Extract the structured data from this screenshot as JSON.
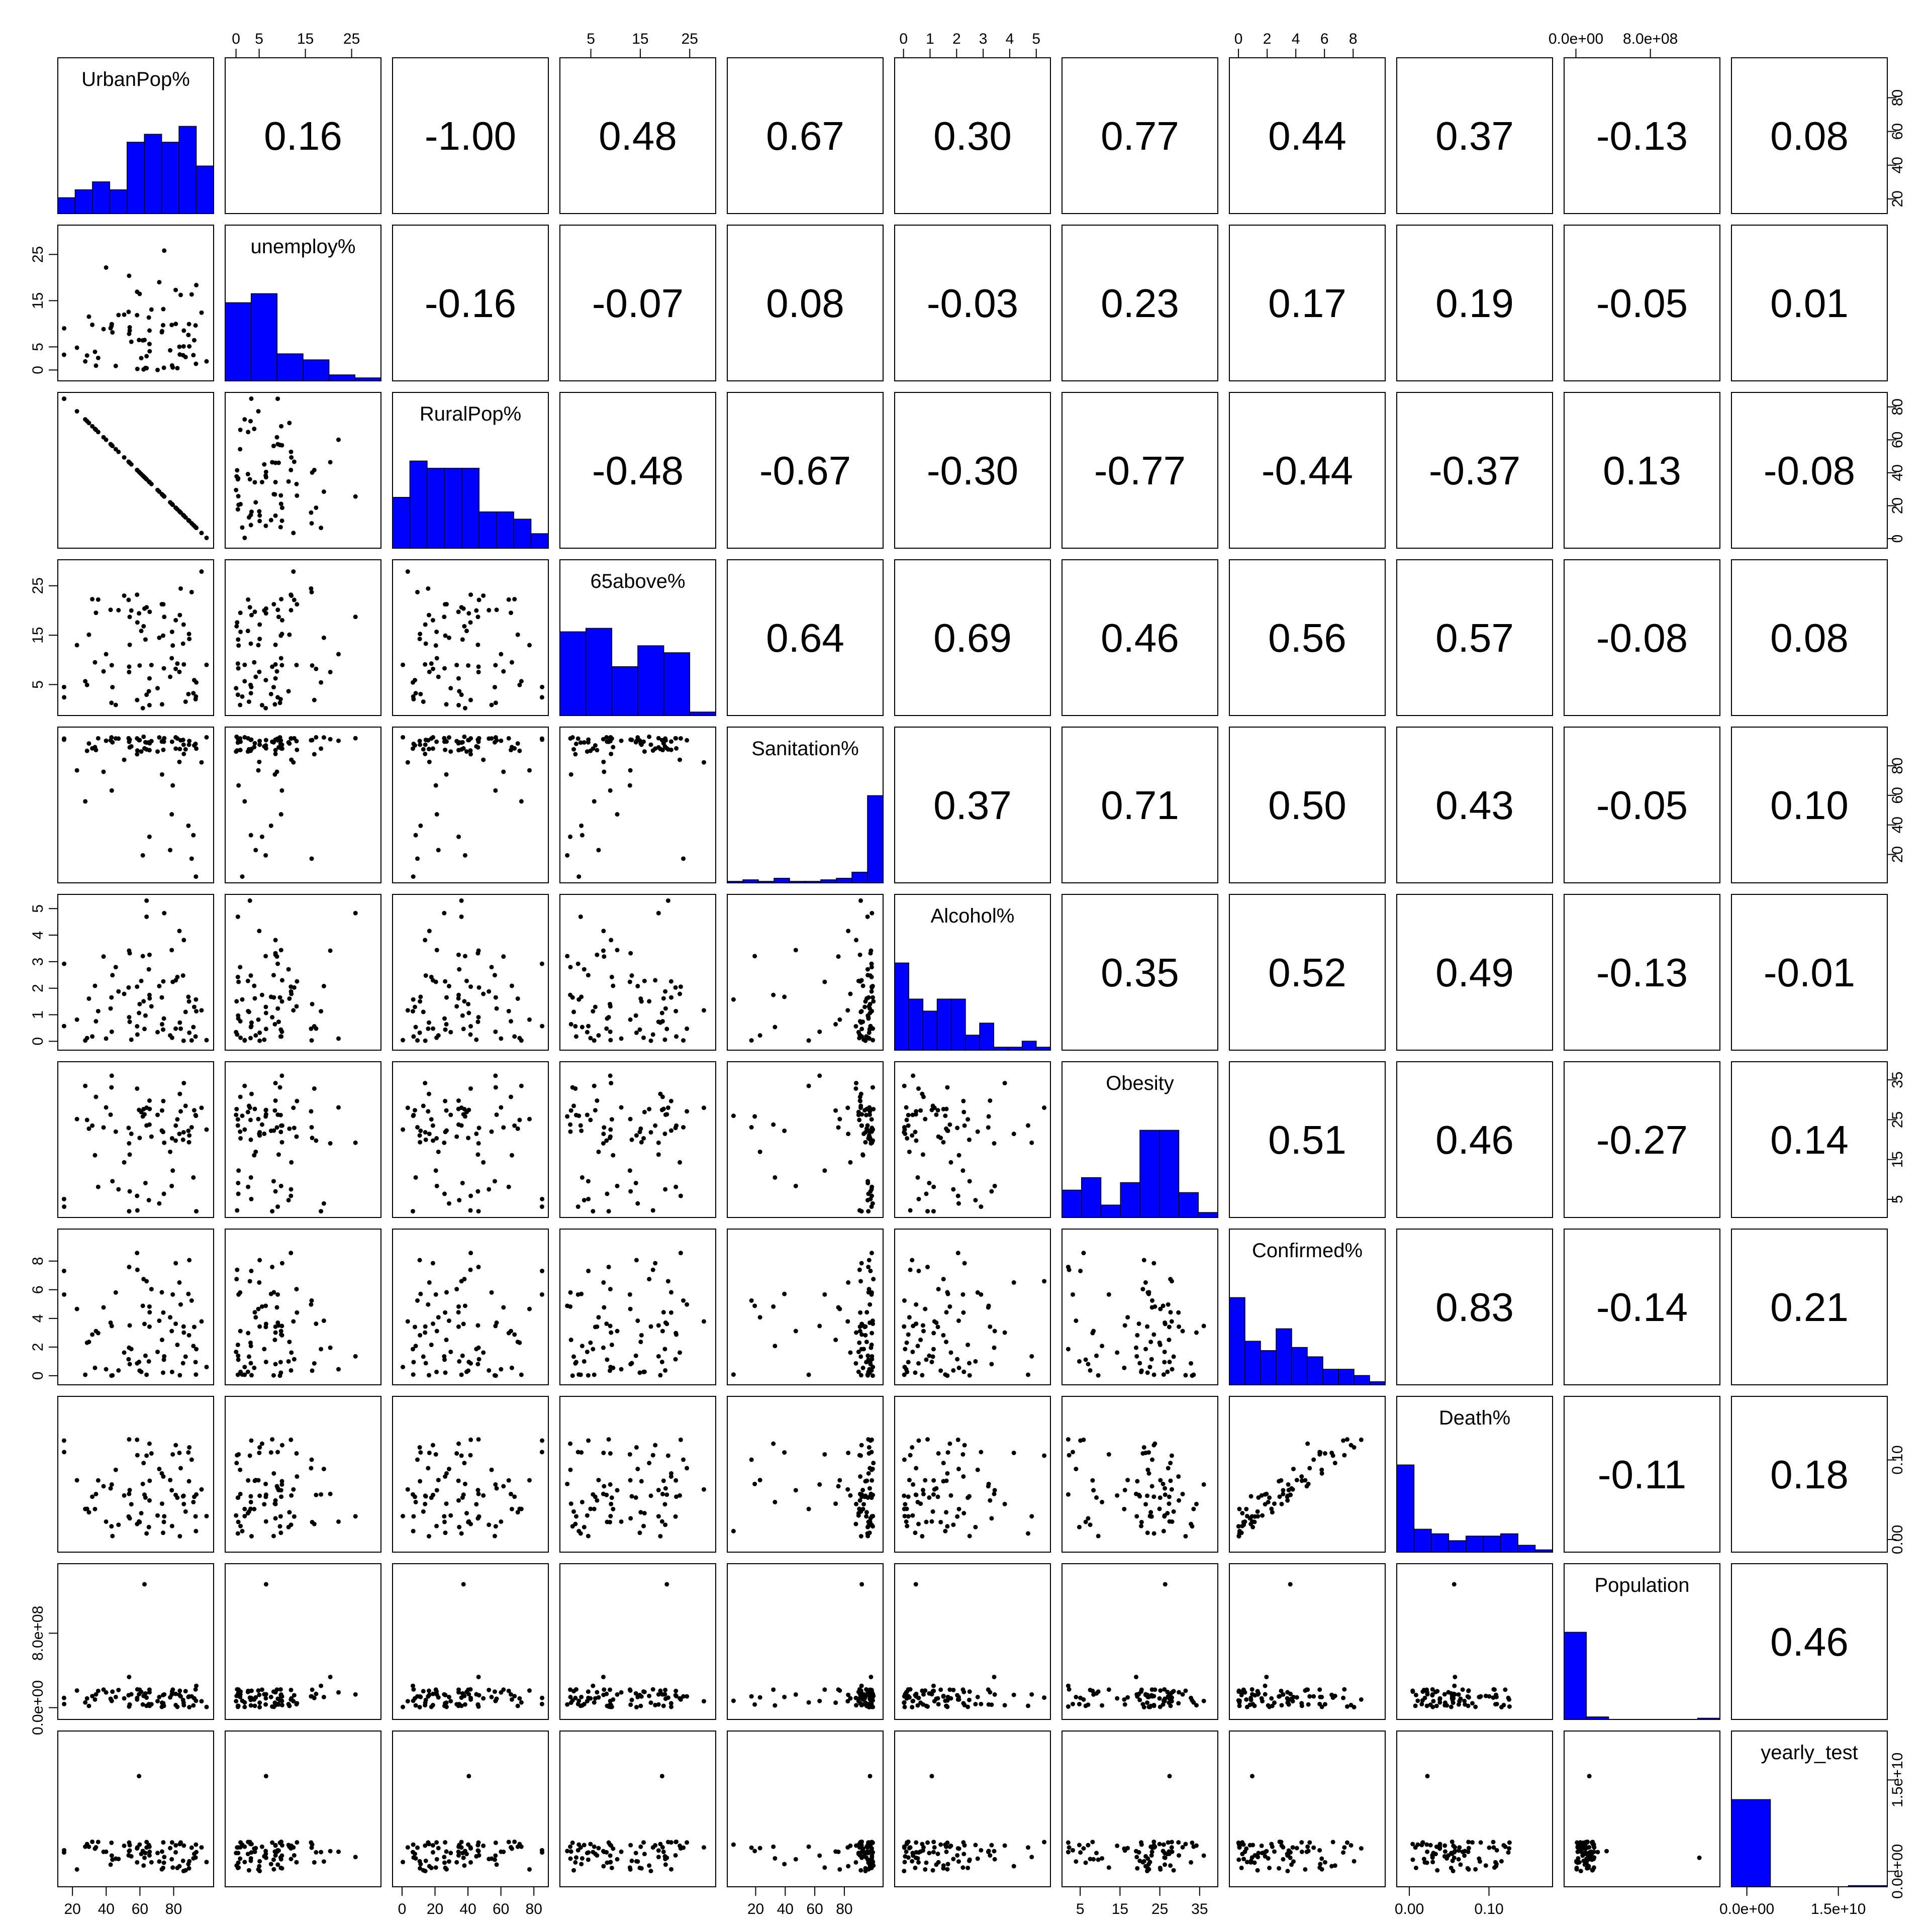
{
  "chart_data": {
    "type": "scatter-matrix",
    "variables": [
      {
        "name": "UrbanPop%",
        "ticks": [
          20,
          40,
          60,
          80
        ],
        "tick_labels": [
          "20",
          "40",
          "60",
          "80"
        ],
        "range": [
          15,
          100
        ]
      },
      {
        "name": "unemploy%",
        "ticks": [
          0,
          5,
          15,
          25
        ],
        "tick_labels": [
          "0",
          "5",
          "15",
          "25"
        ],
        "range": [
          -1,
          30
        ]
      },
      {
        "name": "RuralPop%",
        "ticks": [
          0,
          20,
          40,
          60,
          80
        ],
        "tick_labels": [
          "0",
          "20",
          "40",
          "60",
          "80"
        ],
        "range": [
          -2,
          85
        ]
      },
      {
        "name": "65above%",
        "ticks": [
          5,
          15,
          25
        ],
        "tick_labels": [
          "5",
          "15",
          "25"
        ],
        "range": [
          0,
          29
        ]
      },
      {
        "name": "Sanitation%",
        "ticks": [
          20,
          40,
          60,
          80
        ],
        "tick_labels": [
          "20",
          "40",
          "60",
          "80"
        ],
        "range": [
          5,
          102
        ]
      },
      {
        "name": "Alcohol%",
        "ticks": [
          0,
          1,
          2,
          3,
          4,
          5
        ],
        "tick_labels": [
          "0",
          "1",
          "2",
          "3",
          "4",
          "5"
        ],
        "range": [
          -0.1,
          5.3
        ]
      },
      {
        "name": "Obesity",
        "ticks": [
          5,
          15,
          25,
          35
        ],
        "tick_labels": [
          "5",
          "15",
          "25",
          "35"
        ],
        "range": [
          2,
          38
        ]
      },
      {
        "name": "Confirmed%",
        "ticks": [
          0,
          2,
          4,
          6,
          8
        ],
        "tick_labels": [
          "0",
          "2",
          "4",
          "6",
          "8"
        ],
        "range": [
          -0.2,
          9.8
        ]
      },
      {
        "name": "Death%",
        "ticks": [
          0.0,
          0.1
        ],
        "tick_labels": [
          "0.00",
          "0.10"
        ],
        "range": [
          -0.008,
          0.172
        ]
      },
      {
        "name": "Population",
        "ticks": [
          0,
          800000000
        ],
        "tick_labels": [
          "0.0e+00",
          "8.0e+08"
        ],
        "range": [
          -60000000,
          1480000000
        ]
      },
      {
        "name": "yearly_test",
        "ticks": [
          0,
          15000000000
        ],
        "tick_labels": [
          "0.0e+00",
          "1.5e+10"
        ],
        "range": [
          -1500000000,
          22000000000
        ]
      }
    ],
    "correlations": [
      {
        "row": 0,
        "col": 1,
        "value": "0.16"
      },
      {
        "row": 0,
        "col": 2,
        "value": "-1.00"
      },
      {
        "row": 0,
        "col": 3,
        "value": "0.48"
      },
      {
        "row": 0,
        "col": 4,
        "value": "0.67"
      },
      {
        "row": 0,
        "col": 5,
        "value": "0.30"
      },
      {
        "row": 0,
        "col": 6,
        "value": "0.77"
      },
      {
        "row": 0,
        "col": 7,
        "value": "0.44"
      },
      {
        "row": 0,
        "col": 8,
        "value": "0.37"
      },
      {
        "row": 0,
        "col": 9,
        "value": "-0.13"
      },
      {
        "row": 0,
        "col": 10,
        "value": "0.08"
      },
      {
        "row": 1,
        "col": 2,
        "value": "-0.16"
      },
      {
        "row": 1,
        "col": 3,
        "value": "-0.07"
      },
      {
        "row": 1,
        "col": 4,
        "value": "0.08"
      },
      {
        "row": 1,
        "col": 5,
        "value": "-0.03"
      },
      {
        "row": 1,
        "col": 6,
        "value": "0.23"
      },
      {
        "row": 1,
        "col": 7,
        "value": "0.17"
      },
      {
        "row": 1,
        "col": 8,
        "value": "0.19"
      },
      {
        "row": 1,
        "col": 9,
        "value": "-0.05"
      },
      {
        "row": 1,
        "col": 10,
        "value": "0.01"
      },
      {
        "row": 2,
        "col": 3,
        "value": "-0.48"
      },
      {
        "row": 2,
        "col": 4,
        "value": "-0.67"
      },
      {
        "row": 2,
        "col": 5,
        "value": "-0.30"
      },
      {
        "row": 2,
        "col": 6,
        "value": "-0.77"
      },
      {
        "row": 2,
        "col": 7,
        "value": "-0.44"
      },
      {
        "row": 2,
        "col": 8,
        "value": "-0.37"
      },
      {
        "row": 2,
        "col": 9,
        "value": "0.13"
      },
      {
        "row": 2,
        "col": 10,
        "value": "-0.08"
      },
      {
        "row": 3,
        "col": 4,
        "value": "0.64"
      },
      {
        "row": 3,
        "col": 5,
        "value": "0.69"
      },
      {
        "row": 3,
        "col": 6,
        "value": "0.46"
      },
      {
        "row": 3,
        "col": 7,
        "value": "0.56"
      },
      {
        "row": 3,
        "col": 8,
        "value": "0.57"
      },
      {
        "row": 3,
        "col": 9,
        "value": "-0.08"
      },
      {
        "row": 3,
        "col": 10,
        "value": "0.08"
      },
      {
        "row": 4,
        "col": 5,
        "value": "0.37"
      },
      {
        "row": 4,
        "col": 6,
        "value": "0.71"
      },
      {
        "row": 4,
        "col": 7,
        "value": "0.50"
      },
      {
        "row": 4,
        "col": 8,
        "value": "0.43"
      },
      {
        "row": 4,
        "col": 9,
        "value": "-0.05"
      },
      {
        "row": 4,
        "col": 10,
        "value": "0.10"
      },
      {
        "row": 5,
        "col": 6,
        "value": "0.35"
      },
      {
        "row": 5,
        "col": 7,
        "value": "0.52"
      },
      {
        "row": 5,
        "col": 8,
        "value": "0.49"
      },
      {
        "row": 5,
        "col": 9,
        "value": "-0.13"
      },
      {
        "row": 5,
        "col": 10,
        "value": "-0.01"
      },
      {
        "row": 6,
        "col": 7,
        "value": "0.51"
      },
      {
        "row": 6,
        "col": 8,
        "value": "0.46"
      },
      {
        "row": 6,
        "col": 9,
        "value": "-0.27"
      },
      {
        "row": 6,
        "col": 10,
        "value": "0.14"
      },
      {
        "row": 7,
        "col": 8,
        "value": "0.83"
      },
      {
        "row": 7,
        "col": 9,
        "value": "-0.14"
      },
      {
        "row": 7,
        "col": 10,
        "value": "0.21"
      },
      {
        "row": 8,
        "col": 9,
        "value": "-0.11"
      },
      {
        "row": 8,
        "col": 10,
        "value": "0.18"
      },
      {
        "row": 9,
        "col": 10,
        "value": "0.46"
      }
    ],
    "histograms": [
      {
        "variable": "UrbanPop%",
        "bin_edges": [
          15,
          25,
          35,
          45,
          55,
          65,
          75,
          85,
          95,
          105
        ],
        "counts": [
          2,
          3,
          4,
          3,
          9,
          10,
          9,
          11,
          6
        ]
      },
      {
        "variable": "unemploy%",
        "bin_edges": [
          0,
          5,
          10,
          15,
          20,
          25,
          30
        ],
        "counts": [
          26,
          29,
          9,
          7,
          2,
          1
        ]
      },
      {
        "variable": "RuralPop%",
        "bin_edges": [
          0,
          10,
          20,
          30,
          40,
          50,
          60,
          70,
          80,
          90
        ],
        "counts": [
          7,
          12,
          11,
          11,
          11,
          5,
          5,
          4,
          2
        ]
      },
      {
        "variable": "65above%",
        "bin_edges": [
          0,
          5,
          10,
          15,
          20,
          25,
          30
        ],
        "counts": [
          24,
          25,
          14,
          20,
          18,
          1
        ]
      },
      {
        "variable": "Sanitation%",
        "bin_edges": [
          0,
          10,
          20,
          30,
          40,
          50,
          60,
          70,
          80,
          90,
          100
        ],
        "counts": [
          1,
          2,
          1,
          3,
          1,
          1,
          2,
          3,
          7,
          57
        ]
      },
      {
        "variable": "Alcohol%",
        "bin_edges": [
          0,
          0.5,
          1,
          1.5,
          2,
          2.5,
          3,
          3.5,
          4,
          4.5,
          5,
          5.5
        ],
        "counts": [
          29,
          17,
          13,
          17,
          17,
          5,
          9,
          1,
          1,
          3,
          1
        ]
      },
      {
        "variable": "Obesity",
        "bin_edges": [
          0,
          5,
          10,
          15,
          20,
          25,
          30,
          35,
          40
        ],
        "counts": [
          11,
          16,
          5,
          14,
          35,
          35,
          10,
          2
        ]
      },
      {
        "variable": "Confirmed%",
        "bin_edges": [
          0,
          1,
          2,
          3,
          4,
          5,
          6,
          7,
          8,
          9,
          10
        ],
        "counts": [
          28,
          14,
          11,
          18,
          12,
          9,
          5,
          5,
          3,
          1
        ]
      },
      {
        "variable": "Death%",
        "bin_edges": [
          0,
          0.02,
          0.04,
          0.06,
          0.08,
          0.1,
          0.12,
          0.14,
          0.16,
          0.18
        ],
        "counts": [
          38,
          10,
          8,
          5,
          7,
          7,
          8,
          3,
          1
        ]
      },
      {
        "variable": "Population",
        "bin_edges": [
          0,
          200000000,
          400000000,
          600000000,
          800000000,
          1000000000,
          1200000000,
          1400000000
        ],
        "counts": [
          68,
          2,
          0,
          0,
          0,
          0,
          1
        ]
      },
      {
        "variable": "yearly_test",
        "bin_edges": [
          0,
          5000000000,
          10000000000,
          15000000000,
          20000000000
        ],
        "counts": [
          72,
          0,
          0,
          1
        ]
      }
    ],
    "tick_placement": {
      "top": [
        1,
        3,
        5,
        7,
        9
      ],
      "bottom": [
        0,
        2,
        4,
        6,
        8,
        10
      ],
      "left": [
        1,
        3,
        5,
        7,
        9
      ],
      "right": [
        0,
        2,
        4,
        6,
        8,
        10
      ]
    },
    "colors": {
      "histogram_fill": "#0000ff",
      "points": "#000000",
      "panel_border": "#000000",
      "text": "#000000"
    },
    "points_per_panel_approx": 75,
    "title": "",
    "xlabel": "",
    "ylabel": ""
  }
}
